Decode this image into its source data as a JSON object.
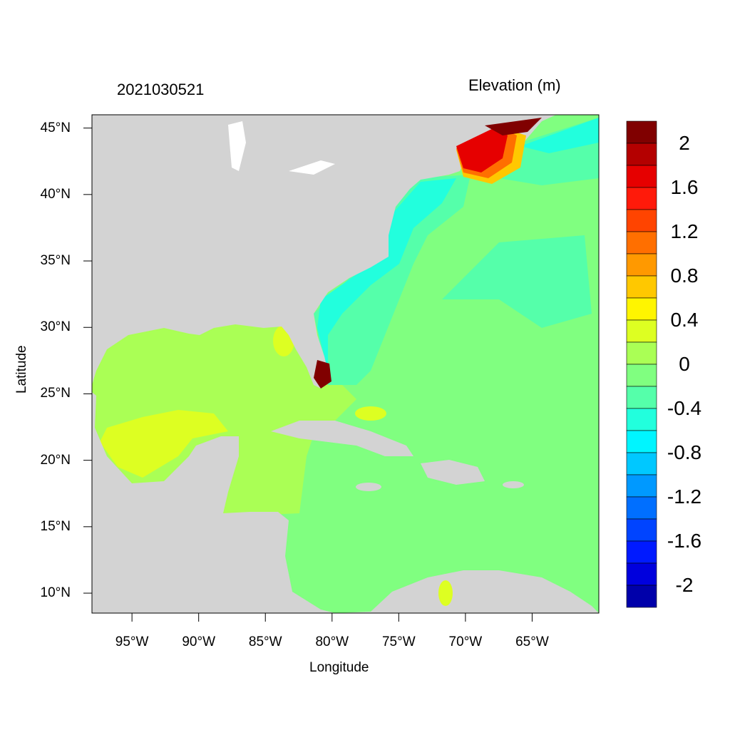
{
  "title_left": "2021030521",
  "title_right": "Elevation (m)",
  "chart_data": {
    "type": "heatmap",
    "xlabel": "Longitude",
    "ylabel": "Latitude",
    "xlim": [
      -98,
      -60
    ],
    "ylim": [
      8.5,
      46
    ],
    "x_ticks": [
      {
        "value": -95,
        "label": "95°W"
      },
      {
        "value": -90,
        "label": "90°W"
      },
      {
        "value": -85,
        "label": "85°W"
      },
      {
        "value": -80,
        "label": "80°W"
      },
      {
        "value": -75,
        "label": "75°W"
      },
      {
        "value": -70,
        "label": "70°W"
      },
      {
        "value": -65,
        "label": "65°W"
      }
    ],
    "y_ticks": [
      {
        "value": 45,
        "label": "45°N"
      },
      {
        "value": 40,
        "label": "40°N"
      },
      {
        "value": 35,
        "label": "35°N"
      },
      {
        "value": 30,
        "label": "30°N"
      },
      {
        "value": 25,
        "label": "25°N"
      },
      {
        "value": 20,
        "label": "20°N"
      },
      {
        "value": 15,
        "label": "15°N"
      },
      {
        "value": 10,
        "label": "10°N"
      }
    ],
    "colorbar": {
      "range": [
        -2.2,
        2.2
      ],
      "step": 0.2,
      "labels": [
        {
          "value": 2,
          "label": "2"
        },
        {
          "value": 1.6,
          "label": "1.6"
        },
        {
          "value": 1.2,
          "label": "1.2"
        },
        {
          "value": 0.8,
          "label": "0.8"
        },
        {
          "value": 0.4,
          "label": "0.4"
        },
        {
          "value": 0,
          "label": "0"
        },
        {
          "value": -0.4,
          "label": "-0.4"
        },
        {
          "value": -0.8,
          "label": "-0.8"
        },
        {
          "value": -1.2,
          "label": "-1.2"
        },
        {
          "value": -1.6,
          "label": "-1.6"
        },
        {
          "value": -2,
          "label": "-2"
        }
      ],
      "colors_top_to_bottom": [
        "#800000",
        "#B40000",
        "#E60000",
        "#FF1A0A",
        "#FF4400",
        "#FF6F00",
        "#FF9900",
        "#FFC800",
        "#FFF500",
        "#DDFF22",
        "#AAFF55",
        "#80FF80",
        "#55FFAA",
        "#22FFDD",
        "#00F5FF",
        "#00C8FF",
        "#0099FF",
        "#006FFF",
        "#0044FF",
        "#001AFF",
        "#0000DD",
        "#0000AA"
      ]
    },
    "land_color": "#D3D3D3"
  }
}
